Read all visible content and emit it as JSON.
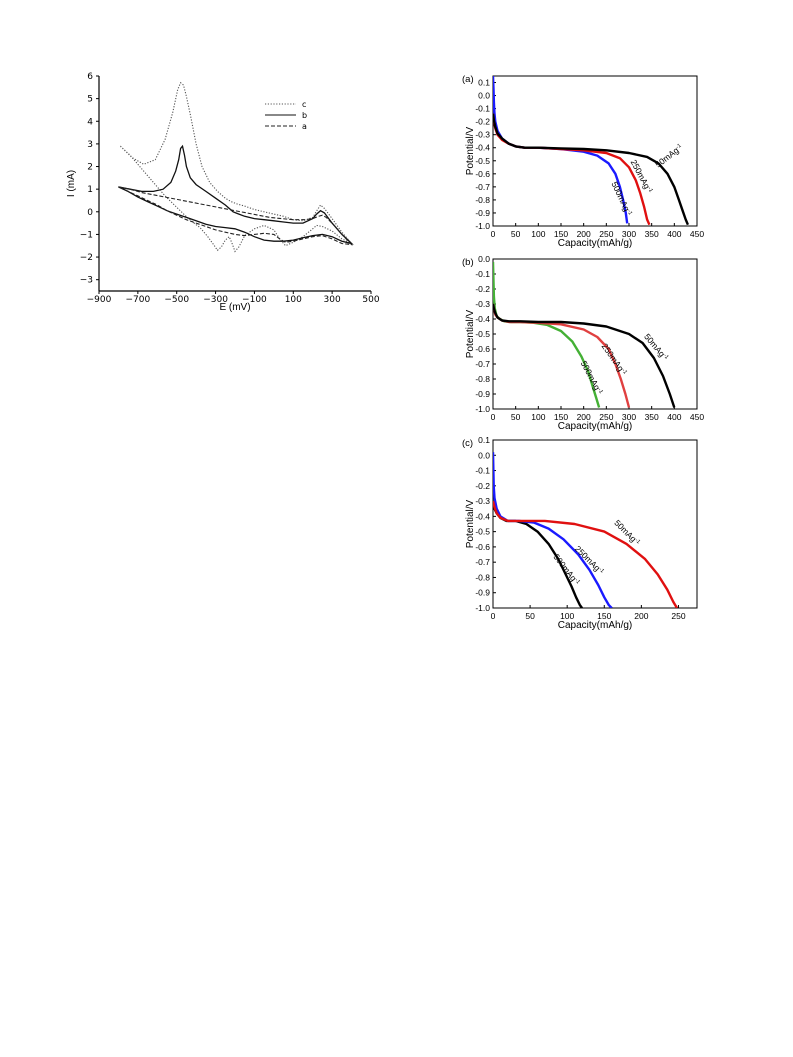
{
  "chart_data": [
    {
      "type": "line",
      "id": "cv",
      "xlabel": "E (mV)",
      "ylabel": "I (mA)",
      "xlim": [
        -900,
        500
      ],
      "ylim": [
        -3.5,
        6
      ],
      "xticks": [
        -900,
        -700,
        -500,
        -300,
        -100,
        100,
        300,
        500
      ],
      "xtick_labels": [
        "−900",
        "−700",
        "−500",
        "−300",
        "−100",
        "100",
        "300",
        "500"
      ],
      "yticks": [
        -3,
        -2,
        -1,
        0,
        1,
        2,
        3,
        4,
        5,
        6
      ],
      "ytick_labels": [
        "−3",
        "−2",
        "−1",
        "0",
        "1",
        "2",
        "3",
        "4",
        "5",
        "6"
      ],
      "legend_position": "top-right",
      "series": [
        {
          "name": "c",
          "style": "dotted",
          "color": "#555555",
          "x": [
            -790,
            -730,
            -670,
            -610,
            -560,
            -520,
            -495,
            -480,
            -465,
            -450,
            -430,
            -400,
            -370,
            -330,
            -290,
            -250,
            -220,
            -190,
            -150,
            -100,
            -50,
            0,
            50,
            100,
            150,
            200,
            225,
            240,
            260,
            300,
            350,
            400,
            350,
            300,
            250,
            220,
            200,
            150,
            100,
            60,
            30,
            0,
            -50,
            -100,
            -150,
            -180,
            -200,
            -215,
            -230,
            -250,
            -270,
            -290,
            -310,
            -340,
            -380,
            -440,
            -500,
            -560,
            -620,
            -680,
            -740,
            -790
          ],
          "y": [
            2.9,
            2.4,
            2.1,
            2.3,
            3.2,
            4.4,
            5.4,
            5.7,
            5.6,
            5.1,
            4.3,
            3.0,
            2.0,
            1.3,
            0.9,
            0.6,
            0.45,
            0.35,
            0.25,
            0.1,
            0.0,
            -0.1,
            -0.2,
            -0.35,
            -0.4,
            -0.25,
            0.1,
            0.3,
            0.15,
            -0.3,
            -0.9,
            -1.4,
            -1.2,
            -0.85,
            -0.65,
            -0.6,
            -0.75,
            -1.1,
            -1.35,
            -1.5,
            -1.2,
            -0.8,
            -0.6,
            -0.75,
            -1.05,
            -1.55,
            -1.75,
            -1.4,
            -1.1,
            -1.25,
            -1.55,
            -1.7,
            -1.45,
            -1.1,
            -0.7,
            -0.3,
            0.2,
            0.7,
            1.3,
            1.9,
            2.5,
            2.9
          ]
        },
        {
          "name": "b",
          "style": "solid",
          "color": "#111111",
          "x": [
            -800,
            -740,
            -680,
            -620,
            -570,
            -530,
            -505,
            -490,
            -480,
            -470,
            -460,
            -450,
            -430,
            -400,
            -350,
            -300,
            -250,
            -230,
            -210,
            -180,
            -150,
            -100,
            -50,
            0,
            50,
            100,
            150,
            200,
            220,
            240,
            260,
            300,
            350,
            400,
            350,
            300,
            250,
            200,
            150,
            100,
            50,
            0,
            -50,
            -100,
            -150,
            -200,
            -250,
            -300,
            -350,
            -400,
            -450,
            -500,
            -550,
            -600,
            -650,
            -700,
            -750,
            -800
          ],
          "y": [
            1.1,
            1.0,
            0.9,
            0.9,
            1.0,
            1.3,
            1.8,
            2.3,
            2.8,
            2.9,
            2.5,
            2.0,
            1.5,
            1.2,
            0.9,
            0.6,
            0.3,
            0.15,
            0.0,
            -0.1,
            -0.2,
            -0.3,
            -0.35,
            -0.4,
            -0.45,
            -0.5,
            -0.5,
            -0.3,
            -0.1,
            0.05,
            -0.05,
            -0.5,
            -1.0,
            -1.4,
            -1.3,
            -1.1,
            -1.0,
            -1.05,
            -1.15,
            -1.25,
            -1.3,
            -1.3,
            -1.25,
            -1.1,
            -0.9,
            -0.75,
            -0.7,
            -0.65,
            -0.55,
            -0.4,
            -0.25,
            -0.1,
            0.05,
            0.25,
            0.45,
            0.65,
            0.9,
            1.1
          ]
        },
        {
          "name": "a",
          "style": "dashed",
          "color": "#222222",
          "x": [
            -800,
            -740,
            -680,
            -620,
            -560,
            -500,
            -440,
            -380,
            -320,
            -260,
            -200,
            -140,
            -80,
            -20,
            40,
            100,
            160,
            200,
            230,
            250,
            270,
            310,
            350,
            400,
            350,
            300,
            250,
            200,
            150,
            100,
            60,
            30,
            0,
            -50,
            -100,
            -150,
            -200,
            -250,
            -300,
            -350,
            -400,
            -450,
            -500,
            -550,
            -600,
            -650,
            -700,
            -750,
            -800
          ],
          "y": [
            1.1,
            1.0,
            0.85,
            0.75,
            0.65,
            0.55,
            0.45,
            0.35,
            0.25,
            0.15,
            0.05,
            -0.05,
            -0.15,
            -0.25,
            -0.3,
            -0.35,
            -0.35,
            -0.3,
            -0.2,
            -0.15,
            -0.25,
            -0.6,
            -1.0,
            -1.45,
            -1.4,
            -1.2,
            -1.05,
            -1.1,
            -1.2,
            -1.3,
            -1.35,
            -1.2,
            -1.0,
            -0.95,
            -1.0,
            -1.05,
            -1.0,
            -0.9,
            -0.8,
            -0.65,
            -0.5,
            -0.35,
            -0.15,
            0.05,
            0.3,
            0.5,
            0.7,
            0.9,
            1.1
          ]
        }
      ]
    },
    {
      "type": "line",
      "id": "a",
      "panel_label": "(a)",
      "xlabel": "Capacity(mAh/g)",
      "ylabel": "Potential/V",
      "xlim": [
        0,
        450
      ],
      "ylim": [
        -1.0,
        0.15
      ],
      "xticks": [
        0,
        50,
        100,
        150,
        200,
        250,
        300,
        350,
        400,
        450
      ],
      "yticks": [
        -1.0,
        -0.9,
        -0.8,
        -0.7,
        -0.6,
        -0.5,
        -0.4,
        -0.3,
        -0.2,
        -0.1,
        0.0,
        0.1
      ],
      "ytick_labels": [
        "-1.0",
        "-0.9",
        "-0.8",
        "-0.7",
        "-0.6",
        "-0.5",
        "-0.4",
        "-0.3",
        "-0.2",
        "-0.1",
        "0.0",
        "0.1"
      ],
      "series": [
        {
          "label": "500mAg",
          "color": "#1a1aff",
          "x": [
            0,
            1,
            2,
            3,
            5,
            10,
            20,
            35,
            50,
            70,
            100,
            150,
            200,
            230,
            255,
            270,
            280,
            287,
            293,
            296
          ],
          "y": [
            0.15,
            0.05,
            -0.05,
            -0.13,
            -0.2,
            -0.27,
            -0.33,
            -0.37,
            -0.39,
            -0.4,
            -0.4,
            -0.41,
            -0.43,
            -0.46,
            -0.52,
            -0.6,
            -0.7,
            -0.8,
            -0.9,
            -0.98
          ]
        },
        {
          "label": "250mAg",
          "color": "#e01010",
          "x": [
            0,
            2,
            5,
            10,
            20,
            35,
            50,
            70,
            100,
            150,
            200,
            250,
            280,
            300,
            315,
            325,
            333,
            340,
            345
          ],
          "y": [
            -0.14,
            -0.2,
            -0.25,
            -0.3,
            -0.34,
            -0.37,
            -0.39,
            -0.4,
            -0.4,
            -0.41,
            -0.42,
            -0.44,
            -0.48,
            -0.55,
            -0.65,
            -0.75,
            -0.85,
            -0.95,
            -0.99
          ]
        },
        {
          "label": "50mAg",
          "color": "#000000",
          "x": [
            0,
            2,
            5,
            10,
            20,
            35,
            50,
            70,
            100,
            150,
            200,
            250,
            300,
            340,
            365,
            385,
            400,
            410,
            418,
            425,
            430
          ],
          "y": [
            -0.14,
            -0.19,
            -0.24,
            -0.29,
            -0.33,
            -0.37,
            -0.39,
            -0.4,
            -0.4,
            -0.405,
            -0.41,
            -0.42,
            -0.44,
            -0.47,
            -0.52,
            -0.6,
            -0.7,
            -0.8,
            -0.88,
            -0.95,
            -0.99
          ]
        }
      ],
      "annotations": [
        {
          "text": "500mAg",
          "sup": "-1",
          "x": 278,
          "y": -0.8,
          "angle": 65
        },
        {
          "text": "250mAg",
          "sup": "-1",
          "x": 322,
          "y": -0.63,
          "angle": 62
        },
        {
          "text": "50mAg",
          "sup": "-1",
          "x": 392,
          "y": -0.48,
          "angle": -38
        }
      ]
    },
    {
      "type": "line",
      "id": "b",
      "panel_label": "(b)",
      "xlabel": "Capacity(mAh/g)",
      "ylabel": "Potential/V",
      "xlim": [
        0,
        450
      ],
      "ylim": [
        -1.0,
        0.0
      ],
      "xticks": [
        0,
        50,
        100,
        150,
        200,
        250,
        300,
        350,
        400,
        450
      ],
      "yticks": [
        -1.0,
        -0.9,
        -0.8,
        -0.7,
        -0.6,
        -0.5,
        -0.4,
        -0.3,
        -0.2,
        -0.1,
        0.0
      ],
      "ytick_labels": [
        "-1.0",
        "-0.9",
        "-0.8",
        "-0.7",
        "-0.6",
        "-0.5",
        "-0.4",
        "-0.3",
        "-0.2",
        "-0.1",
        "0.0"
      ],
      "series": [
        {
          "label": "500mAg",
          "color": "#44b035",
          "x": [
            0,
            1,
            2,
            4,
            8,
            15,
            25,
            40,
            60,
            90,
            120,
            150,
            175,
            195,
            210,
            220,
            228,
            234
          ],
          "y": [
            -0.02,
            -0.15,
            -0.25,
            -0.33,
            -0.38,
            -0.4,
            -0.415,
            -0.42,
            -0.42,
            -0.425,
            -0.44,
            -0.48,
            -0.55,
            -0.65,
            -0.75,
            -0.85,
            -0.93,
            -0.99
          ]
        },
        {
          "label": "250mAg",
          "color": "#e04040",
          "x": [
            0,
            2,
            5,
            10,
            20,
            35,
            60,
            100,
            150,
            200,
            230,
            255,
            270,
            282,
            292,
            300
          ],
          "y": [
            -0.3,
            -0.33,
            -0.37,
            -0.39,
            -0.41,
            -0.42,
            -0.42,
            -0.425,
            -0.435,
            -0.47,
            -0.52,
            -0.6,
            -0.7,
            -0.8,
            -0.9,
            -0.99
          ]
        },
        {
          "label": "50mAg",
          "color": "#000000",
          "x": [
            0,
            2,
            5,
            10,
            20,
            35,
            60,
            100,
            150,
            200,
            250,
            300,
            330,
            355,
            375,
            390,
            400
          ],
          "y": [
            -0.3,
            -0.33,
            -0.36,
            -0.39,
            -0.41,
            -0.415,
            -0.415,
            -0.42,
            -0.42,
            -0.43,
            -0.45,
            -0.5,
            -0.56,
            -0.66,
            -0.78,
            -0.9,
            -0.99
          ]
        }
      ],
      "annotations": [
        {
          "text": "500mAg",
          "sup": "-1",
          "x": 212,
          "y": -0.8,
          "angle": 62
        },
        {
          "text": "250mAg",
          "sup": "-1",
          "x": 262,
          "y": -0.68,
          "angle": 55
        },
        {
          "text": "50mAg",
          "sup": "-1",
          "x": 355,
          "y": -0.6,
          "angle": 50
        }
      ]
    },
    {
      "type": "line",
      "id": "c",
      "panel_label": "(c)",
      "xlabel": "Capacity(mAh/g)",
      "ylabel": "Potential/V",
      "xlim": [
        0,
        275
      ],
      "ylim": [
        -1.0,
        0.1
      ],
      "xticks": [
        0,
        50,
        100,
        150,
        200,
        250
      ],
      "yticks": [
        -1.0,
        -0.9,
        -0.8,
        -0.7,
        -0.6,
        -0.5,
        -0.4,
        -0.3,
        -0.2,
        -0.1,
        0.0,
        0.1
      ],
      "ytick_labels": [
        "-1.0",
        "-0.9",
        "-0.8",
        "-0.7",
        "-0.6",
        "-0.5",
        "-0.4",
        "-0.3",
        "-0.2",
        "-0.1",
        "0.0",
        "0.1"
      ],
      "series": [
        {
          "label": "500mAg",
          "color": "#000000",
          "x": [
            0,
            2,
            5,
            10,
            18,
            30,
            45,
            60,
            75,
            88,
            98,
            106,
            112,
            117,
            120
          ],
          "y": [
            -0.3,
            -0.35,
            -0.38,
            -0.41,
            -0.43,
            -0.43,
            -0.45,
            -0.5,
            -0.58,
            -0.68,
            -0.78,
            -0.86,
            -0.93,
            -0.98,
            -1.0
          ]
        },
        {
          "label": "250mAg",
          "color": "#1a1aff",
          "x": [
            0,
            1,
            2,
            5,
            10,
            20,
            35,
            55,
            75,
            95,
            115,
            130,
            142,
            150,
            156,
            160
          ],
          "y": [
            0.02,
            -0.2,
            -0.28,
            -0.35,
            -0.4,
            -0.43,
            -0.43,
            -0.44,
            -0.48,
            -0.55,
            -0.65,
            -0.75,
            -0.85,
            -0.93,
            -0.98,
            -1.0
          ]
        },
        {
          "label": "50mAg",
          "color": "#e01010",
          "x": [
            0,
            2,
            5,
            10,
            20,
            40,
            70,
            110,
            150,
            180,
            205,
            222,
            235,
            243,
            248
          ],
          "y": [
            -0.3,
            -0.34,
            -0.38,
            -0.41,
            -0.43,
            -0.43,
            -0.43,
            -0.45,
            -0.5,
            -0.58,
            -0.68,
            -0.78,
            -0.88,
            -0.96,
            -1.0
          ]
        }
      ],
      "annotations": [
        {
          "text": "500mAg",
          "sup": "-1",
          "x": 96,
          "y": -0.76,
          "angle": 52
        },
        {
          "text": "250mAg",
          "sup": "-1",
          "x": 127,
          "y": -0.7,
          "angle": 45
        },
        {
          "text": "50mAg",
          "sup": "-1",
          "x": 178,
          "y": -0.52,
          "angle": 45
        }
      ]
    }
  ]
}
